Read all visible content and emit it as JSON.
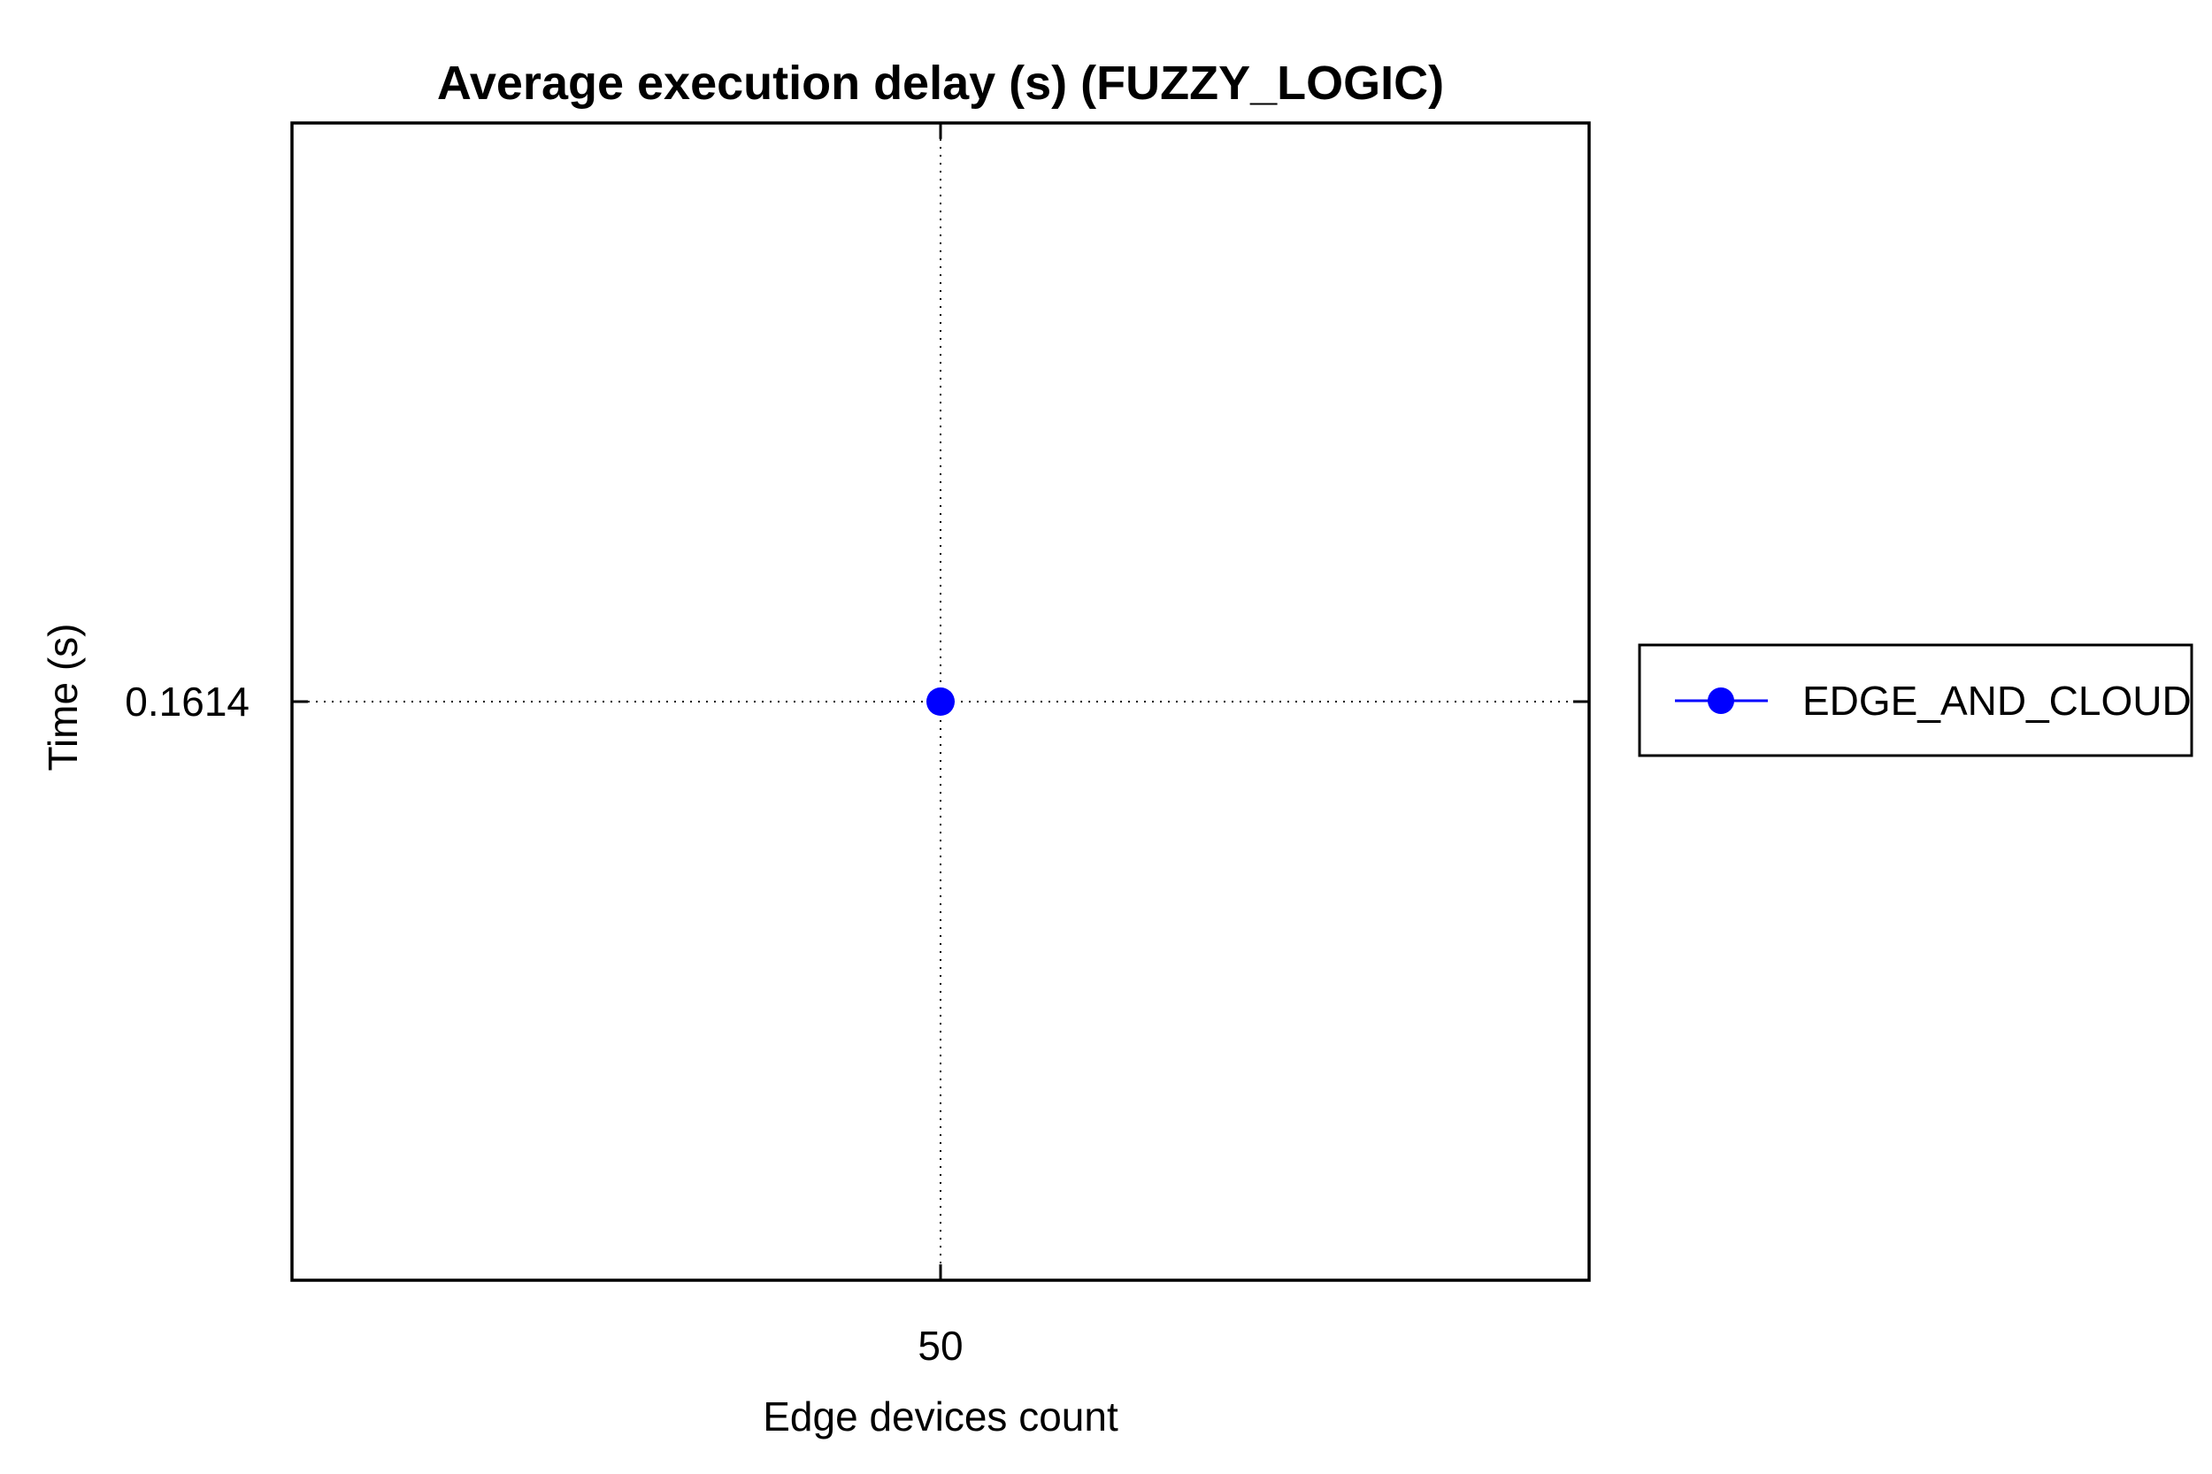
{
  "chart_data": {
    "type": "line",
    "title": "Average execution delay (s) (FUZZY_LOGIC)",
    "xlabel": "Edge devices count",
    "ylabel": "Time (s)",
    "x_ticks": [
      {
        "value": 50,
        "label": "50"
      }
    ],
    "y_ticks": [
      {
        "value": 0.1614,
        "label": "0.1614"
      }
    ],
    "xlim": [
      0,
      100
    ],
    "ylim": [
      0.1604,
      0.1624
    ],
    "grid": true,
    "legend_position": "outside-right",
    "series": [
      {
        "name": "EDGE_AND_CLOUD",
        "color": "#0000ff",
        "marker": "circle",
        "x": [
          50
        ],
        "y": [
          0.1614
        ]
      }
    ]
  }
}
